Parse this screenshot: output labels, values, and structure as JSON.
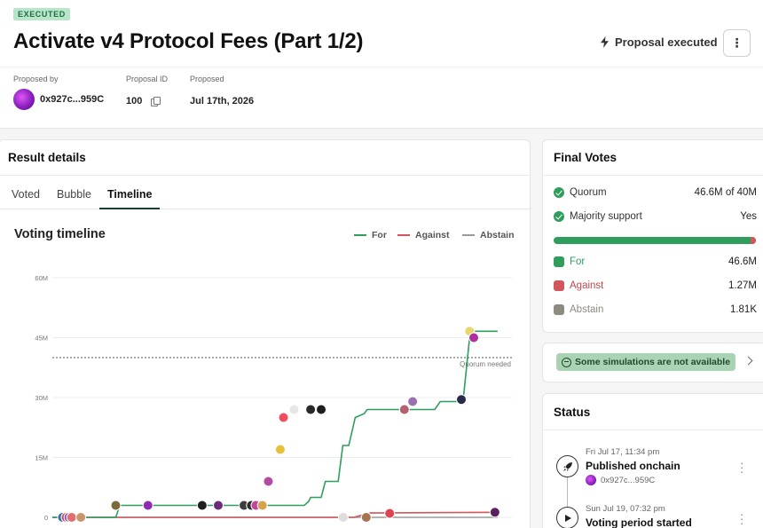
{
  "header": {
    "badge": "EXECUTED",
    "title": "Activate v4 Protocol Fees (Part 1/2)",
    "status": "Proposal executed",
    "more_label": "⋮"
  },
  "meta": {
    "proposed_by_label": "Proposed by",
    "proposer": "0x927c...959C",
    "proposal_id_label": "Proposal ID",
    "proposal_id": "100",
    "proposed_label": "Proposed",
    "proposed_date": "Jul 17th, 2026"
  },
  "result": {
    "title": "Result details",
    "tabs": [
      "Voted",
      "Bubble",
      "Timeline"
    ],
    "active_tab": "Timeline",
    "chart_title": "Voting timeline",
    "legend": [
      {
        "label": "For",
        "color": "#2f9e5d"
      },
      {
        "label": "Against",
        "color": "#d0575a"
      },
      {
        "label": "Abstain",
        "color": "#9a9a9a"
      }
    ],
    "quorum_label": "Quorum needed"
  },
  "chart_data": {
    "type": "line",
    "yticks": [
      "60M",
      "45M",
      "30M",
      "15M",
      "0"
    ],
    "ylim": [
      0,
      60
    ],
    "y_unit": "M",
    "quorum": 40,
    "x_range": [
      0,
      100
    ],
    "series": [
      {
        "name": "For",
        "color": "#2f9e5d",
        "points": [
          [
            0,
            0
          ],
          [
            13.8,
            0
          ],
          [
            14.7,
            3
          ],
          [
            20.8,
            3
          ],
          [
            26.6,
            3
          ],
          [
            37.3,
            3
          ],
          [
            45.2,
            3
          ],
          [
            52.4,
            3
          ],
          [
            53.3,
            3
          ],
          [
            54.8,
            3
          ],
          [
            55.8,
            4
          ],
          [
            56.2,
            5
          ],
          [
            57.3,
            5
          ],
          [
            58.5,
            5
          ],
          [
            59.4,
            9
          ],
          [
            62.2,
            9
          ],
          [
            63.2,
            18
          ],
          [
            64.5,
            18
          ],
          [
            65.9,
            25
          ],
          [
            67.9,
            26
          ],
          [
            68.5,
            27
          ],
          [
            71.4,
            27
          ],
          [
            74.6,
            27
          ],
          [
            83.2,
            27
          ],
          [
            84.4,
            29
          ],
          [
            88.5,
            29
          ],
          [
            89.4,
            29.5
          ],
          [
            90.8,
            45
          ],
          [
            91.7,
            46.6
          ],
          [
            96.9,
            46.6
          ]
        ]
      },
      {
        "name": "Against",
        "color": "#d0575a",
        "points": [
          [
            0,
            0
          ],
          [
            65.6,
            0
          ],
          [
            67.1,
            0.5
          ],
          [
            69.2,
            1.1
          ],
          [
            96.9,
            1.27
          ]
        ]
      },
      {
        "name": "Abstain",
        "color": "#9a9a9a",
        "points": [
          [
            0,
            0
          ],
          [
            96.9,
            0
          ]
        ]
      }
    ],
    "voters": [
      {
        "x": 2.2,
        "y": 0,
        "color": "#3a6ea5"
      },
      {
        "x": 3.0,
        "y": 0,
        "color": "#c94c4c"
      },
      {
        "x": 3.6,
        "y": 0,
        "color": "#9b4fc0"
      },
      {
        "x": 4.2,
        "y": 0,
        "color": "#e07070"
      },
      {
        "x": 6.2,
        "y": 0,
        "color": "#c9956d"
      },
      {
        "x": 13.8,
        "y": 3,
        "color": "#7b6a3a"
      },
      {
        "x": 20.8,
        "y": 3,
        "color": "#8e2bb0"
      },
      {
        "x": 32.6,
        "y": 3,
        "color": "#1f1f1f"
      },
      {
        "x": 36.1,
        "y": 3,
        "color": "#6b2b7a"
      },
      {
        "x": 41.7,
        "y": 3,
        "color": "#3d3d3d"
      },
      {
        "x": 43.3,
        "y": 3,
        "color": "#2e2e2e"
      },
      {
        "x": 44.3,
        "y": 3,
        "color": "#c0469c"
      },
      {
        "x": 45.7,
        "y": 3,
        "color": "#d6a24a"
      },
      {
        "x": 47.0,
        "y": 9,
        "color": "#b34aa3"
      },
      {
        "x": 49.6,
        "y": 17,
        "color": "#e8c13a"
      },
      {
        "x": 50.3,
        "y": 25,
        "color": "#f04d5f"
      },
      {
        "x": 52.6,
        "y": 27,
        "color": "#e6e6e6"
      },
      {
        "x": 56.2,
        "y": 27,
        "color": "#2a2a2a"
      },
      {
        "x": 58.5,
        "y": 27,
        "color": "#1e1e1e"
      },
      {
        "x": 63.3,
        "y": 0,
        "color": "#dddddd"
      },
      {
        "x": 68.3,
        "y": 0,
        "color": "#a5734f"
      },
      {
        "x": 73.4,
        "y": 1,
        "color": "#e04250"
      },
      {
        "x": 76.6,
        "y": 27,
        "color": "#b56070"
      },
      {
        "x": 78.4,
        "y": 29,
        "color": "#9b6fb0"
      },
      {
        "x": 89.0,
        "y": 29.5,
        "color": "#2a2a4a"
      },
      {
        "x": 90.8,
        "y": 46.6,
        "color": "#e7d76a"
      },
      {
        "x": 91.7,
        "y": 45,
        "color": "#b02fa0"
      },
      {
        "x": 96.3,
        "y": 1.27,
        "color": "#5a1f5e"
      }
    ]
  },
  "final_votes": {
    "title": "Final Votes",
    "quorum_label": "Quorum",
    "quorum_value": "46.6M of 40M",
    "majority_label": "Majority support",
    "majority_value": "Yes",
    "for_fraction": 0.973,
    "against_fraction": 0.027,
    "rows": [
      {
        "label": "For",
        "value": "46.6M",
        "color": "#2f9e5d"
      },
      {
        "label": "Against",
        "value": "1.27M",
        "color": "#d0575a"
      },
      {
        "label": "Abstain",
        "value": "1.81K",
        "color": "#8d8a80"
      }
    ]
  },
  "simulations": {
    "label": "Some simulations are not available"
  },
  "status": {
    "title": "Status",
    "events": [
      {
        "date": "Fri Jul 17, 11:34 pm",
        "label": "Published onchain",
        "address": "0x927c...959C",
        "icon": "rocket-icon"
      },
      {
        "date": "Sun Jul 19, 07:32 pm",
        "label": "Voting period started",
        "icon": "play-icon"
      }
    ]
  }
}
